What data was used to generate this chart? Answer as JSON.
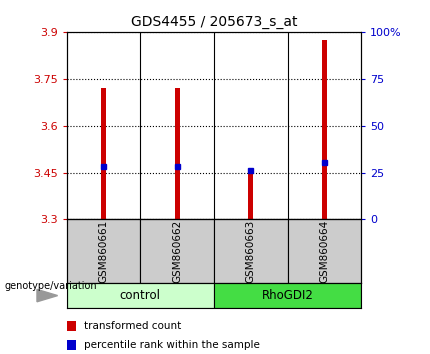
{
  "title": "GDS4455 / 205673_s_at",
  "samples": [
    "GSM860661",
    "GSM860662",
    "GSM860663",
    "GSM860664"
  ],
  "bar_values": [
    3.72,
    3.72,
    3.45,
    3.875
  ],
  "percentile_values": [
    3.468,
    3.468,
    3.458,
    3.482
  ],
  "y_min": 3.3,
  "y_max": 3.9,
  "y_ticks_left": [
    3.3,
    3.45,
    3.6,
    3.75,
    3.9
  ],
  "y_ticks_right": [
    0,
    25,
    50,
    75,
    100
  ],
  "y_ticks_right_vals": [
    3.3,
    3.45,
    3.6,
    3.75,
    3.9
  ],
  "bar_base": 3.3,
  "bar_color": "#cc0000",
  "percentile_color": "#0000cc",
  "groups": [
    {
      "label": "control",
      "indices": [
        0,
        1
      ],
      "color": "#ccffcc"
    },
    {
      "label": "RhoGDI2",
      "indices": [
        2,
        3
      ],
      "color": "#44dd44"
    }
  ],
  "sample_box_color": "#cccccc",
  "genotype_label": "genotype/variation",
  "legend_items": [
    {
      "color": "#cc0000",
      "label": "transformed count"
    },
    {
      "color": "#0000cc",
      "label": "percentile rank within the sample"
    }
  ]
}
